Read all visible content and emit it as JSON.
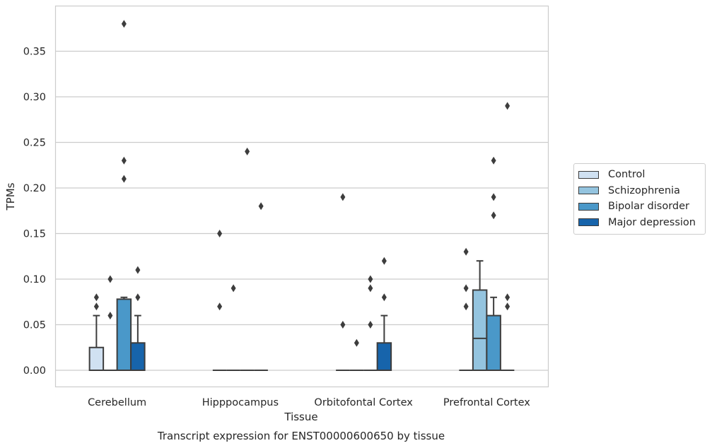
{
  "chart_data": {
    "type": "box",
    "xlabel": "Tissue",
    "ylabel": "TPMs",
    "caption": "Transcript expression for ENST00000600650 by tissue",
    "ylim": [
      -0.018,
      0.398
    ],
    "yticks": [
      0.0,
      0.05,
      0.1,
      0.15,
      0.2,
      0.25,
      0.3,
      0.35
    ],
    "ytick_labels": [
      "0.00",
      "0.05",
      "0.10",
      "0.15",
      "0.20",
      "0.25",
      "0.30",
      "0.35"
    ],
    "grid": "horizontal",
    "legend_position": "right",
    "categories": [
      "Cerebellum",
      "Hipppocampus",
      "Orbitofontal Cortex",
      "Prefrontal Cortex"
    ],
    "series": [
      {
        "name": "Control",
        "color": "#d0e1f2",
        "boxes": [
          {
            "q1": 0.0,
            "median": 0.0,
            "q3": 0.025,
            "whisker_low": 0.0,
            "whisker_high": 0.06,
            "outliers": [
              0.07,
              0.08
            ]
          },
          {
            "q1": 0.0,
            "median": 0.0,
            "q3": 0.0,
            "whisker_low": 0.0,
            "whisker_high": 0.0,
            "outliers": [
              0.07,
              0.15
            ]
          },
          {
            "q1": 0.0,
            "median": 0.0,
            "q3": 0.0,
            "whisker_low": 0.0,
            "whisker_high": 0.0,
            "outliers": [
              0.05,
              0.19
            ]
          },
          {
            "q1": 0.0,
            "median": 0.0,
            "q3": 0.0,
            "whisker_low": 0.0,
            "whisker_high": 0.0,
            "outliers": [
              0.07,
              0.09,
              0.13
            ]
          }
        ]
      },
      {
        "name": "Schizophrenia",
        "color": "#94c4df",
        "boxes": [
          {
            "q1": 0.0,
            "median": 0.0,
            "q3": 0.0,
            "whisker_low": 0.0,
            "whisker_high": 0.0,
            "outliers": [
              0.06,
              0.1
            ]
          },
          {
            "q1": 0.0,
            "median": 0.0,
            "q3": 0.0,
            "whisker_low": 0.0,
            "whisker_high": 0.0,
            "outliers": [
              0.09
            ]
          },
          {
            "q1": 0.0,
            "median": 0.0,
            "q3": 0.0,
            "whisker_low": 0.0,
            "whisker_high": 0.0,
            "outliers": [
              0.03
            ]
          },
          {
            "q1": 0.0,
            "median": 0.035,
            "q3": 0.088,
            "whisker_low": 0.0,
            "whisker_high": 0.12,
            "outliers": []
          }
        ]
      },
      {
        "name": "Bipolar disorder",
        "color": "#4a98c9",
        "boxes": [
          {
            "q1": 0.0,
            "median": 0.0,
            "q3": 0.078,
            "whisker_low": 0.0,
            "whisker_high": 0.08,
            "outliers": [
              0.21,
              0.23,
              0.38
            ]
          },
          {
            "q1": 0.0,
            "median": 0.0,
            "q3": 0.0,
            "whisker_low": 0.0,
            "whisker_high": 0.0,
            "outliers": [
              0.24
            ]
          },
          {
            "q1": 0.0,
            "median": 0.0,
            "q3": 0.0,
            "whisker_low": 0.0,
            "whisker_high": 0.0,
            "outliers": [
              0.05,
              0.09,
              0.1
            ]
          },
          {
            "q1": 0.0,
            "median": 0.0,
            "q3": 0.06,
            "whisker_low": 0.0,
            "whisker_high": 0.08,
            "outliers": [
              0.17,
              0.19,
              0.23
            ]
          }
        ]
      },
      {
        "name": "Major depression",
        "color": "#1764ab",
        "boxes": [
          {
            "q1": 0.0,
            "median": 0.0,
            "q3": 0.03,
            "whisker_low": 0.0,
            "whisker_high": 0.06,
            "outliers": [
              0.08,
              0.11
            ]
          },
          {
            "q1": 0.0,
            "median": 0.0,
            "q3": 0.0,
            "whisker_low": 0.0,
            "whisker_high": 0.0,
            "outliers": [
              0.18
            ]
          },
          {
            "q1": 0.0,
            "median": 0.0,
            "q3": 0.03,
            "whisker_low": 0.0,
            "whisker_high": 0.06,
            "outliers": [
              0.08,
              0.12
            ]
          },
          {
            "q1": 0.0,
            "median": 0.0,
            "q3": 0.0,
            "whisker_low": 0.0,
            "whisker_high": 0.0,
            "outliers": [
              0.07,
              0.08,
              0.29
            ]
          }
        ]
      }
    ]
  },
  "legend": {
    "items": [
      {
        "label": "Control",
        "color": "#d0e1f2"
      },
      {
        "label": "Schizophrenia",
        "color": "#94c4df"
      },
      {
        "label": "Bipolar disorder",
        "color": "#4a98c9"
      },
      {
        "label": "Major depression",
        "color": "#1764ab"
      }
    ]
  }
}
